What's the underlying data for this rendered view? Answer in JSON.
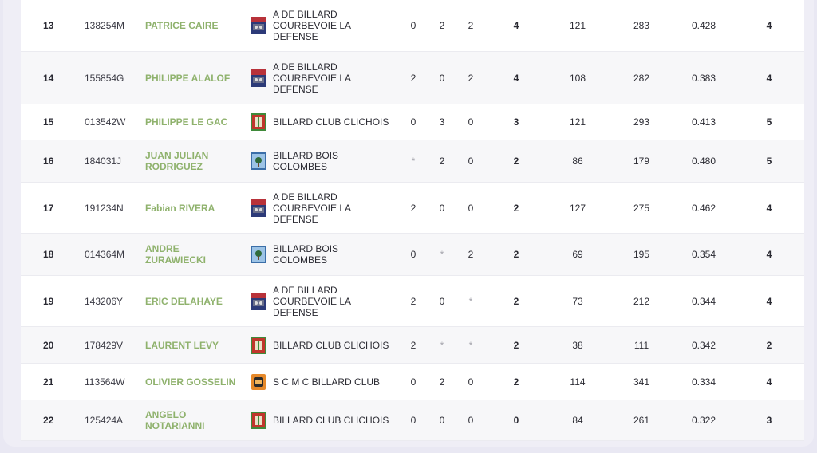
{
  "rows": [
    {
      "rank": "13",
      "licence": "138254M",
      "name": "PATRICE CAIRE",
      "club_logo": "courbevoie-logo",
      "club": "A DE BILLARD COURBEVOIE LA DEFENSE",
      "w": "0",
      "d": "2",
      "l": "2",
      "pts": "4",
      "pv": "121",
      "rep": "283",
      "moy": "0.428",
      "ms": "4"
    },
    {
      "rank": "14",
      "licence": "155854G",
      "name": "PHILIPPE ALALOF",
      "club_logo": "courbevoie-logo",
      "club": "A DE BILLARD COURBEVOIE LA DEFENSE",
      "w": "2",
      "d": "0",
      "l": "2",
      "pts": "4",
      "pv": "108",
      "rep": "282",
      "moy": "0.383",
      "ms": "4"
    },
    {
      "rank": "15",
      "licence": "013542W",
      "name": "PHILIPPE LE GAC",
      "club_logo": "clichois-logo",
      "club": "BILLARD CLUB CLICHOIS",
      "w": "0",
      "d": "3",
      "l": "0",
      "pts": "3",
      "pv": "121",
      "rep": "293",
      "moy": "0.413",
      "ms": "5"
    },
    {
      "rank": "16",
      "licence": "184031J",
      "name": "JUAN JULIAN RODRIGUEZ",
      "club_logo": "bois-colombes-logo",
      "club": "BILLARD BOIS COLOMBES",
      "w": "*",
      "d": "2",
      "l": "0",
      "pts": "2",
      "pv": "86",
      "rep": "179",
      "moy": "0.480",
      "ms": "5"
    },
    {
      "rank": "17",
      "licence": "191234N",
      "name": "Fabian RIVERA",
      "club_logo": "courbevoie-logo",
      "club": "A DE BILLARD COURBEVOIE LA DEFENSE",
      "w": "2",
      "d": "0",
      "l": "0",
      "pts": "2",
      "pv": "127",
      "rep": "275",
      "moy": "0.462",
      "ms": "4"
    },
    {
      "rank": "18",
      "licence": "014364M",
      "name": "ANDRE ZURAWIECKI",
      "club_logo": "bois-colombes-logo",
      "club": "BILLARD BOIS COLOMBES",
      "w": "0",
      "d": "*",
      "l": "2",
      "pts": "2",
      "pv": "69",
      "rep": "195",
      "moy": "0.354",
      "ms": "4"
    },
    {
      "rank": "19",
      "licence": "143206Y",
      "name": "ERIC DELAHAYE",
      "club_logo": "courbevoie-logo",
      "club": "A DE BILLARD COURBEVOIE LA DEFENSE",
      "w": "2",
      "d": "0",
      "l": "*",
      "pts": "2",
      "pv": "73",
      "rep": "212",
      "moy": "0.344",
      "ms": "4"
    },
    {
      "rank": "20",
      "licence": "178429V",
      "name": "LAURENT LEVY",
      "club_logo": "clichois-logo",
      "club": "BILLARD CLUB CLICHOIS",
      "w": "2",
      "d": "*",
      "l": "*",
      "pts": "2",
      "pv": "38",
      "rep": "111",
      "moy": "0.342",
      "ms": "2"
    },
    {
      "rank": "21",
      "licence": "113564W",
      "name": "OLIVIER GOSSELIN",
      "club_logo": "scmc-logo",
      "club": "S C M C BILLARD CLUB",
      "w": "0",
      "d": "2",
      "l": "0",
      "pts": "2",
      "pv": "114",
      "rep": "341",
      "moy": "0.334",
      "ms": "4"
    },
    {
      "rank": "22",
      "licence": "125424A",
      "name": "ANGELO NOTARIANNI",
      "club_logo": "clichois-logo",
      "club": "BILLARD CLUB CLICHOIS",
      "w": "0",
      "d": "0",
      "l": "0",
      "pts": "0",
      "pv": "84",
      "rep": "261",
      "moy": "0.322",
      "ms": "3"
    }
  ],
  "colors": {
    "player_name": "#8fb26d",
    "row_alt": "#f7f7f9",
    "background": "#e9e8f3"
  }
}
